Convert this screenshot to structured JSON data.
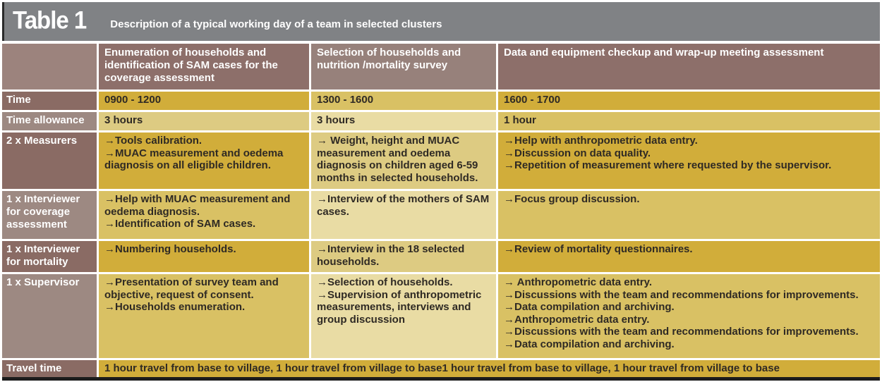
{
  "colors": {
    "page-bg": "#ffffff",
    "title-bar-bg": "#808285",
    "title-text": "#ffffff",
    "header-bg": "#8d6f6a",
    "header-mid-bg": "#97817b",
    "header-corner-bg": "#9c837d",
    "label-dark-bg": "#8a6b64",
    "label-light-bg": "#9d8982",
    "gold-dark": "#d1ad3a",
    "gold-medium": "#d9c164",
    "gold-khaki": "#ddcb82",
    "gold-cream": "#e9dca4",
    "body-text": "#2f2a24",
    "bottom-rule": "#1c1c1c"
  },
  "title_bar": {
    "table_label": "Table 1",
    "description": "Description of a typical working day of a team in selected clusters"
  },
  "columns": [
    {
      "key": "role",
      "header": ""
    },
    {
      "key": "enumeration",
      "header": "Enumeration of households and identification of SAM cases for the coverage assessment"
    },
    {
      "key": "selection",
      "header": "Selection of households and nutrition /mortality survey"
    },
    {
      "key": "wrapup",
      "header": "Data and equipment checkup and wrap-up meeting assessment"
    }
  ],
  "rows": [
    {
      "key": "time",
      "label": "Time",
      "cells": [
        "0900 - 1200",
        "1300 - 1600",
        "1600 - 1700"
      ],
      "shades": [
        "label-dark",
        "gold-dark",
        "gold-medium",
        "gold-dark"
      ]
    },
    {
      "key": "time-allowance",
      "label": "Time allowance",
      "cells": [
        "3 hours",
        "3 hours",
        "1 hour"
      ],
      "shades": [
        "label-light",
        "gold-khaki",
        "gold-cream",
        "gold-medium"
      ]
    },
    {
      "key": "measurers",
      "label": "2 x Measurers",
      "cells": [
        [
          "→Tools calibration.",
          "→MUAC measurement and oedema diagnosis on all eligible children."
        ],
        [
          "→ Weight, height and MUAC measurement and oedema diagnosis on children aged 6-59 months in selected households."
        ],
        [
          "→Help with anthropometric data entry.",
          "→Discussion on data quality.",
          "→Repetition of measurement where requested by the supervisor."
        ]
      ],
      "shades": [
        "label-dark",
        "gold-dark",
        "gold-khaki",
        "gold-dark"
      ]
    },
    {
      "key": "interviewer-coverage",
      "label": "1 x Interviewer for coverage assessment",
      "cells": [
        [
          "→Help with MUAC measurement and oedema diagnosis.",
          "→Identification of SAM cases."
        ],
        [
          "→Interview of the mothers of SAM cases."
        ],
        [
          "→Focus group discussion."
        ]
      ],
      "shades": [
        "label-light",
        "gold-medium",
        "gold-cream",
        "gold-medium"
      ]
    },
    {
      "key": "interviewer-mortality",
      "label": "1 x Interviewer for mortality",
      "cells": [
        [
          "→Numbering households."
        ],
        [
          "→Interview in the 18 selected households."
        ],
        [
          "→Review of mortality questionnaires."
        ]
      ],
      "shades": [
        "label-dark",
        "gold-dark",
        "gold-khaki",
        "gold-dark"
      ]
    },
    {
      "key": "supervisor",
      "label": "1 x Supervisor",
      "cells": [
        [
          "→Presentation of survey team and objective, request of consent.",
          "→Households enumeration."
        ],
        [
          "→Selection of households.",
          "→Supervision of anthropometric measurements, interviews and group discussion"
        ],
        [
          "→ Anthropometric data entry.",
          "→Discussions with the team and recommendations for improvements.",
          "→Data compilation and archiving.",
          "→Anthropometric data entry.",
          "→Discussions with the team and recommendations for improvements.",
          "→Data compilation and archiving."
        ]
      ],
      "shades": [
        "label-light",
        "gold-medium",
        "gold-cream",
        "gold-medium"
      ]
    }
  ],
  "footer_row": {
    "key": "travel-time",
    "label": "Travel time",
    "value": "1 hour travel from base to village, 1 hour travel from village to base1 hour travel from base to village, 1 hour travel from village to base",
    "shades": [
      "label-dark",
      "gold-dark"
    ]
  }
}
